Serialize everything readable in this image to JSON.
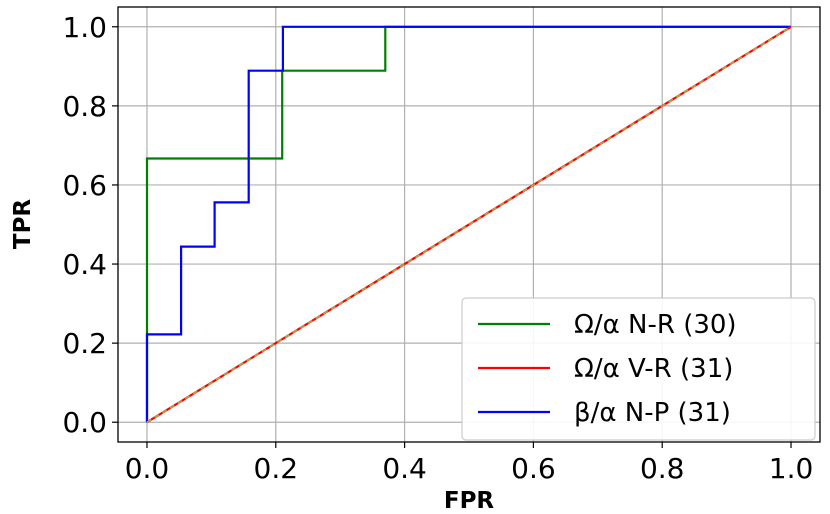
{
  "chart_data": {
    "type": "line",
    "title": "",
    "xlabel": "FPR",
    "ylabel": "TPR",
    "xlim": [
      -0.045,
      1.045
    ],
    "ylim": [
      -0.05,
      1.05
    ],
    "xticks": [
      "0.0",
      "0.2",
      "0.4",
      "0.6",
      "0.8",
      "1.0"
    ],
    "yticks": [
      "0.0",
      "0.2",
      "0.4",
      "0.6",
      "0.8",
      "1.0"
    ],
    "grid": true,
    "legend_position": "bottom-right",
    "series": [
      {
        "name": "Ω/α N-R (30)",
        "color": "#008000",
        "style": "step",
        "x": [
          0.0,
          0.0,
          0.21,
          0.21,
          0.37,
          0.37,
          1.0
        ],
        "y": [
          0.0,
          0.667,
          0.667,
          0.889,
          0.889,
          1.0,
          1.0
        ]
      },
      {
        "name": "Ω/α V-R (31)",
        "color": "#ff0000",
        "style": "line",
        "x": [
          0.0,
          1.0
        ],
        "y": [
          0.0,
          1.0
        ]
      },
      {
        "name": "β/α N-P (31)",
        "color": "#0000ff",
        "style": "step",
        "x": [
          0.0,
          0.0,
          0.053,
          0.053,
          0.105,
          0.105,
          0.158,
          0.158,
          0.211,
          0.211,
          1.0
        ],
        "y": [
          0.0,
          0.222,
          0.222,
          0.444,
          0.444,
          0.556,
          0.556,
          0.889,
          0.889,
          1.0,
          1.0
        ]
      }
    ],
    "reference_line": {
      "color": "#b5a642",
      "x": [
        0.0,
        1.0
      ],
      "y": [
        0.0,
        1.0
      ]
    }
  }
}
